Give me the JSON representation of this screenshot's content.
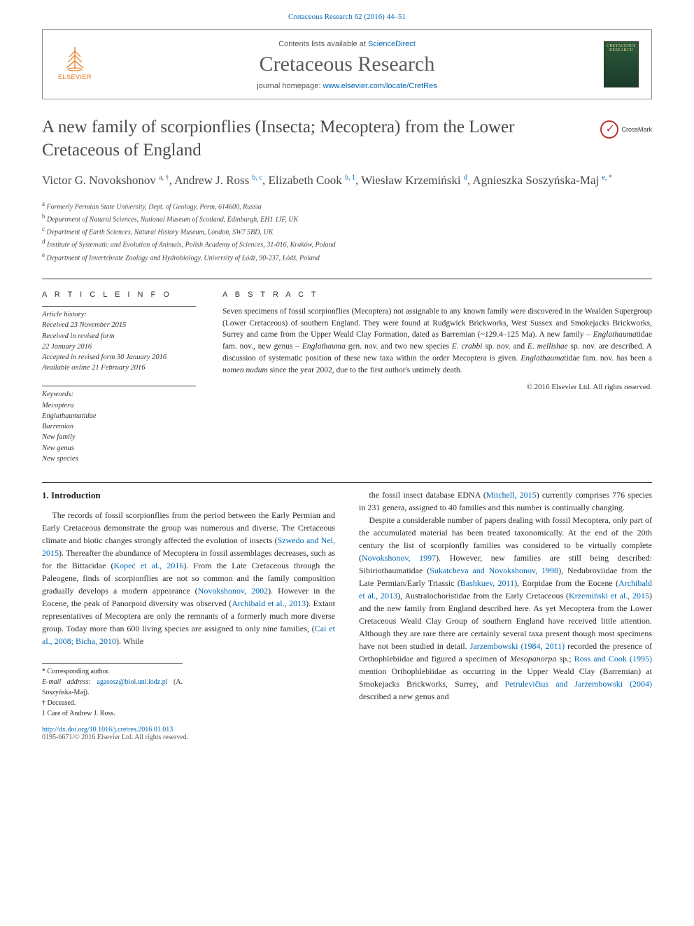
{
  "colors": {
    "link": "#0066b3",
    "text": "#2a2a2a",
    "muted": "#555",
    "elsevier_orange": "#e67817",
    "cover_bg": "#2b5a3a",
    "cover_text": "#e8d898"
  },
  "header": {
    "citation": "Cretaceous Research 62 (2016) 44–51",
    "contents_pre": "Contents lists available at ",
    "contents_link": "ScienceDirect",
    "journal_title": "Cretaceous Research",
    "homepage_pre": "journal homepage: ",
    "homepage_url": "www.elsevier.com/locate/CretRes",
    "publisher": "ELSEVIER",
    "cover_label": "CRETACEOUS RESEARCH"
  },
  "crossmark": "CrossMark",
  "title": "A new family of scorpionflies (Insecta; Mecoptera) from the Lower Cretaceous of England",
  "authors_html": "Victor G. Novokshonov <sup class='plain'>a, †</sup>, Andrew J. Ross <sup>b, c</sup>, Elizabeth Cook <sup>b, 1</sup>, Wiesław Krzemiński <sup>d</sup>, Agnieszka Soszyńska-Maj <sup>e, *</sup>",
  "affiliations": [
    "a Formerly Permian State University, Dept. of Geology, Perm, 614600, Russia",
    "b Department of Natural Sciences, National Museum of Scotland, Edinburgh, EH1 1JF, UK",
    "c Department of Earth Sciences, Natural History Museum, London, SW7 5BD, UK",
    "d Institute of Systematic and Evolution of Animals, Polish Academy of Sciences, 31-016, Kraków, Poland",
    "e Department of Invertebrate Zoology and Hydrobiology, University of Łódź, 90-237, Łódź, Poland"
  ],
  "article_info": {
    "label": "A R T I C L E   I N F O",
    "history_label": "Article history:",
    "history": [
      "Received 23 November 2015",
      "Received in revised form",
      "22 January 2016",
      "Accepted in revised form 30 January 2016",
      "Available online 21 February 2016"
    ],
    "keywords_label": "Keywords:",
    "keywords": [
      "Mecoptera",
      "Englathaumatidae",
      "Barremian",
      "New family",
      "New genus",
      "New species"
    ]
  },
  "abstract": {
    "label": "A B S T R A C T",
    "text": "Seven specimens of fossil scorpionflies (Mecoptera) not assignable to any known family were discovered in the Wealden Supergroup (Lower Cretaceous) of southern England. They were found at Rudgwick Brickworks, West Sussex and Smokejacks Brickworks, Surrey and came from the Upper Weald Clay Formation, dated as Barremian (~129.4–125 Ma). A new family – Englathaumatidae fam. nov., new genus – Englathauma gen. nov. and two new species E. crabbi sp. nov. and E. mellishae sp. nov. are described. A discussion of systematic position of these new taxa within the order Mecoptera is given. Englathaumatidae fam. nov. has been a nomen nudum since the year 2002, due to the first author's untimely death.",
    "copyright": "© 2016 Elsevier Ltd. All rights reserved."
  },
  "body": {
    "heading": "1. Introduction",
    "col1_p1": "The records of fossil scorpionflies from the period between the Early Permian and Early Cretaceous demonstrate the group was numerous and diverse. The Cretaceous climate and biotic changes strongly affected the evolution of insects (Szwedo and Nel, 2015). Thereafter the abundance of Mecoptera in fossil assemblages decreases, such as for the Bittacidae (Kopeć et al., 2016). From the Late Cretaceous through the Paleogene, finds of scorpionflies are not so common and the family composition gradually develops a modern appearance (Novokshonov, 2002). However in the Eocene, the peak of Panorpoid diversity was observed (Archibald et al., 2013). Extant representatives of Mecoptera are only the remnants of a formerly much more diverse group. Today more than 600 living species are assigned to only nine families, (Cai et al., 2008; Bicha, 2010). While",
    "col2_p1": "the fossil insect database EDNA (Mitchell, 2015) currently comprises 776 species in 231 genera, assigned to 40 families and this number is continually changing.",
    "col2_p2": "Despite a considerable number of papers dealing with fossil Mecoptera, only part of the accumulated material has been treated taxonomically. At the end of the 20th century the list of scorpionfly families was considered to be virtually complete (Novokshonov, 1997). However, new families are still being described: Sibiriothaumatidae (Sukatcheva and Novokshonov, 1998), Nedubroviidae from the Late Permian/Early Triassic (Bashkuev, 2011), Eorpidae from the Eocene (Archibald et al., 2013), Australochoristidae from the Early Cretaceous (Krzemiński et al., 2015) and the new family from England described here. As yet Mecoptera from the Lower Cretaceous Weald Clay Group of southern England have received little attention. Although they are rare there are certainly several taxa present though most specimens have not been studied in detail. Jarzembowski (1984, 2011) recorded the presence of Orthophlebiidae and figured a specimen of Mesopanorpa sp.; Ross and Cook (1995) mention Orthophlebiidae as occurring in the Upper Weald Clay (Barremian) at Smokejacks Brickworks, Surrey, and Petrulevičius and Jarzembowski (2004) described a new genus and",
    "citations": [
      "Szwedo and Nel, 2015",
      "Kopeć et al., 2016",
      "Novokshonov, 2002",
      "Archibald et al., 2013",
      "Cai et al., 2008; Bicha, 2010",
      "Mitchell, 2015",
      "Novokshonov, 1997",
      "Sukatcheva and Novokshonov, 1998",
      "Bashkuev, 2011",
      "Archibald et al., 2013",
      "Krzemiński et al., 2015",
      "Jarzembowski (1984, 2011)",
      "Ross and Cook (1995)",
      "Petrulevičius and Jarzembowski (2004)"
    ]
  },
  "footnotes": {
    "corr": "* Corresponding author.",
    "email_label": "E-mail address: ",
    "email": "agasosz@biol.uni.lodz.pl",
    "email_suffix": " (A. Soszyńska-Maj).",
    "deceased": "† Deceased.",
    "care": "1 Care of Andrew J. Ross."
  },
  "bottom": {
    "doi": "http://dx.doi.org/10.1016/j.cretres.2016.01.013",
    "issn_line": "0195-6671/© 2016 Elsevier Ltd. All rights reserved."
  }
}
